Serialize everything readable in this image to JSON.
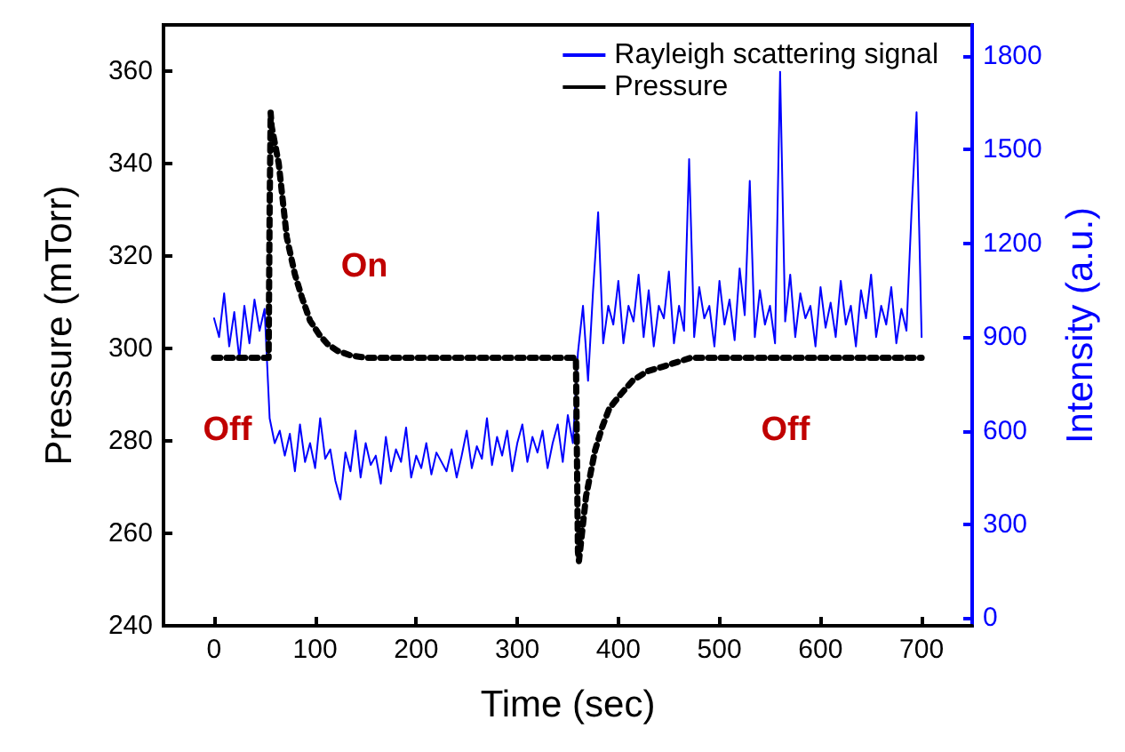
{
  "chart_data": {
    "type": "line",
    "xlabel": "Time (sec)",
    "ylabel": "Pressure (mTorr)",
    "y2label": "Intensity (a.u.)",
    "xlim": [
      -50,
      750
    ],
    "xticks": [
      0,
      100,
      200,
      300,
      400,
      500,
      600,
      700
    ],
    "ylim": [
      240,
      370
    ],
    "yticks": [
      240,
      260,
      280,
      300,
      320,
      340,
      360
    ],
    "y2lim": [
      -25,
      1900
    ],
    "y2ticks": [
      0,
      300,
      600,
      900,
      1200,
      1500,
      1800
    ],
    "grid": false,
    "legend": "top right",
    "marker": "none",
    "series": [
      {
        "name": "Rayleigh scattering signal",
        "color": "#0000ff",
        "axis": "y2",
        "line_style": "solid",
        "x": [
          0,
          5,
          10,
          15,
          20,
          25,
          30,
          35,
          40,
          45,
          50,
          55,
          60,
          65,
          70,
          75,
          80,
          85,
          90,
          95,
          100,
          105,
          110,
          115,
          120,
          125,
          130,
          135,
          140,
          145,
          150,
          155,
          160,
          165,
          170,
          175,
          180,
          185,
          190,
          195,
          200,
          205,
          210,
          215,
          220,
          225,
          230,
          235,
          240,
          245,
          250,
          255,
          260,
          265,
          270,
          275,
          280,
          285,
          290,
          295,
          300,
          305,
          310,
          315,
          320,
          325,
          330,
          335,
          340,
          345,
          350,
          355,
          360,
          365,
          370,
          375,
          380,
          385,
          390,
          395,
          400,
          405,
          410,
          415,
          420,
          425,
          430,
          435,
          440,
          445,
          450,
          455,
          460,
          465,
          470,
          475,
          480,
          485,
          490,
          495,
          500,
          505,
          510,
          515,
          520,
          525,
          530,
          535,
          540,
          545,
          550,
          555,
          560,
          565,
          570,
          575,
          580,
          585,
          590,
          595,
          600,
          605,
          610,
          615,
          620,
          625,
          630,
          635,
          640,
          645,
          650,
          655,
          660,
          665,
          670,
          675,
          680,
          685,
          690,
          695,
          700
        ],
        "values": [
          960,
          900,
          1040,
          870,
          980,
          830,
          1000,
          880,
          1020,
          920,
          990,
          640,
          560,
          600,
          520,
          590,
          470,
          620,
          500,
          560,
          480,
          640,
          510,
          540,
          440,
          380,
          530,
          470,
          600,
          450,
          560,
          490,
          520,
          430,
          580,
          470,
          540,
          500,
          610,
          450,
          520,
          480,
          560,
          460,
          530,
          500,
          470,
          540,
          450,
          520,
          600,
          480,
          550,
          510,
          640,
          490,
          580,
          520,
          600,
          470,
          560,
          620,
          500,
          580,
          530,
          600,
          480,
          560,
          620,
          500,
          650,
          560,
          850,
          1000,
          760,
          1050,
          1300,
          880,
          1000,
          940,
          1080,
          880,
          1000,
          950,
          1100,
          900,
          1050,
          870,
          1000,
          960,
          1110,
          880,
          1000,
          920,
          1470,
          900,
          1060,
          960,
          1000,
          870,
          1080,
          940,
          1020,
          890,
          1120,
          970,
          1400,
          900,
          1050,
          940,
          1000,
          880,
          1750,
          950,
          1100,
          900,
          1040,
          960,
          1000,
          870,
          1060,
          930,
          1010,
          900,
          1080,
          940,
          1000,
          870,
          1050,
          960,
          1100,
          900,
          1000,
          940,
          1060,
          880,
          990,
          920,
          1300,
          1620,
          900
        ]
      },
      {
        "name": "Pressure",
        "color": "#000000",
        "line_style": "dotted",
        "x": [
          0,
          20,
          40,
          54,
          55,
          56,
          57,
          64,
          72,
          80,
          87,
          95,
          104,
          112,
          122,
          135,
          150,
          200,
          250,
          300,
          350,
          358,
          359,
          360,
          361,
          368,
          377,
          384,
          391,
          402,
          414,
          428,
          443,
          472,
          520,
          600,
          700
        ],
        "values": [
          298,
          298,
          298,
          298,
          330,
          351,
          348,
          340,
          324,
          316,
          311,
          306,
          303,
          301,
          299.5,
          298.5,
          298,
          298,
          298,
          298,
          298,
          298,
          277,
          256,
          254,
          268,
          278,
          283,
          287,
          290,
          293,
          295,
          296,
          298,
          298,
          298,
          298
        ]
      }
    ],
    "annotations": [
      "On",
      "Off",
      "Off"
    ]
  }
}
